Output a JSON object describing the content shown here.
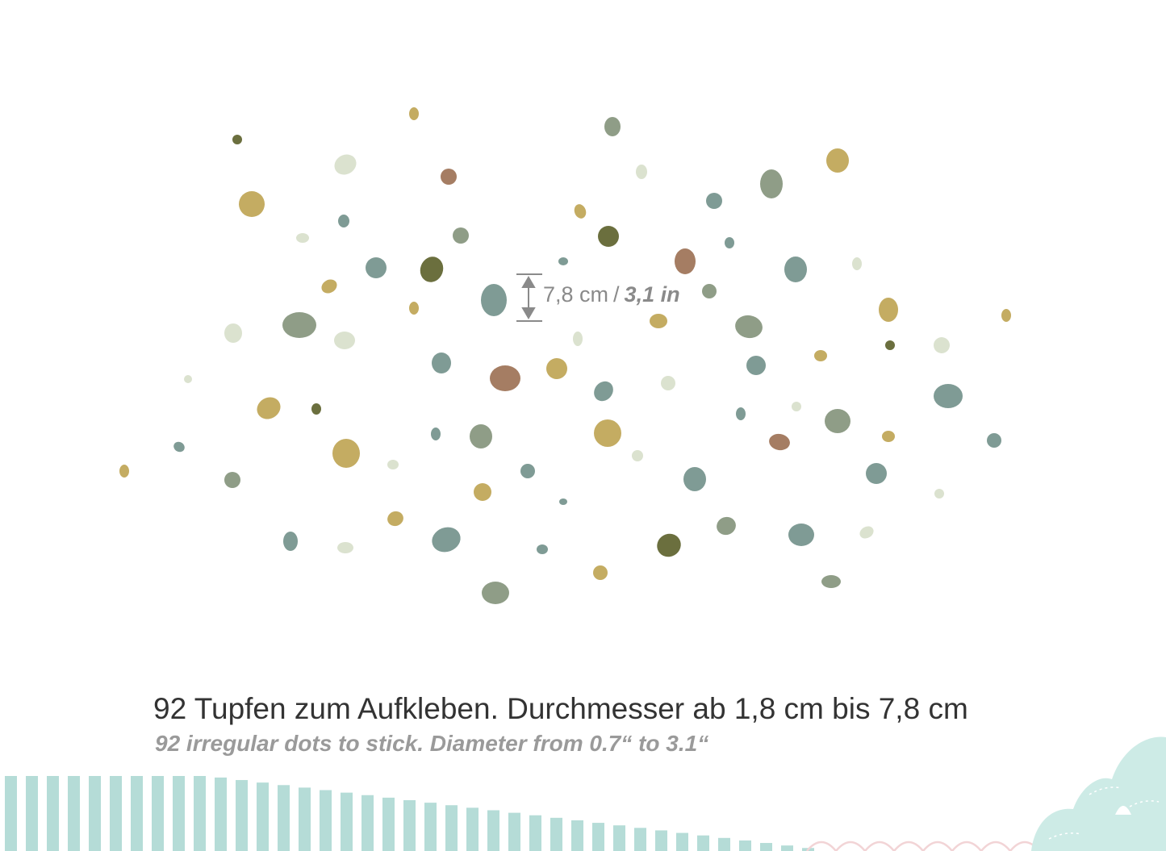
{
  "palette": {
    "mustard": "#c4ac62",
    "sage": "#8f9d87",
    "teal_grey": "#7f9b95",
    "pale_sage": "#dbe2cf",
    "olive": "#6b6f3e",
    "terracotta": "#a57d63",
    "stripe_teal": "#a8d6d0",
    "hill_mint": "#cdebe6",
    "scallop_pink": "#f2d4d6"
  },
  "dimension_label": {
    "metric": "7,8 cm",
    "separator": "/",
    "imperial": "3,1 in"
  },
  "caption": {
    "german": "92 Tupfen zum Aufkleben. Durchmesser ab 1,8 cm bis 7,8 cm",
    "english": "92 irregular dots to stick. Diameter from 0.7“ to 3.1“"
  }
}
